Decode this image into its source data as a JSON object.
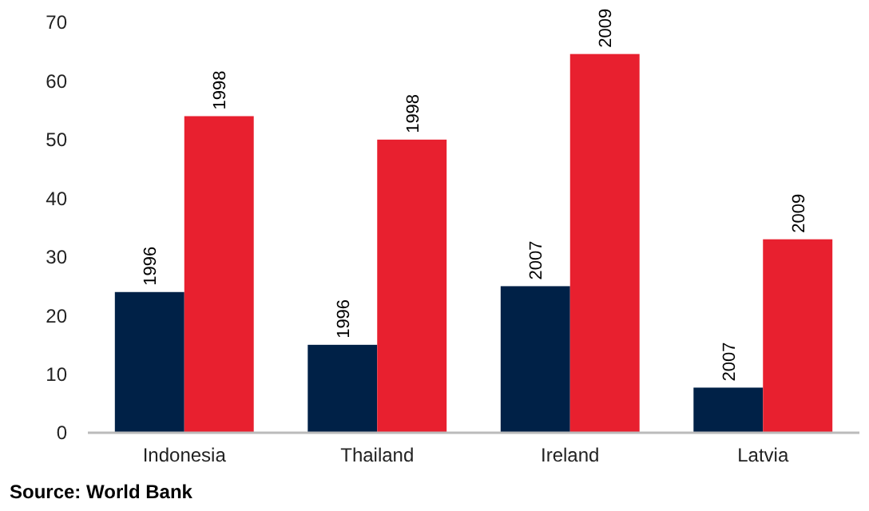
{
  "chart_data": {
    "type": "bar",
    "categories": [
      "Indonesia",
      "Thailand",
      "Ireland",
      "Latvia"
    ],
    "series": [
      {
        "color": "#002147",
        "values": [
          24,
          15,
          25,
          7.7
        ]
      },
      {
        "color": "#e8202f",
        "values": [
          54,
          50,
          64.6,
          33
        ]
      }
    ],
    "ylim": [
      0,
      70
    ],
    "yticks": [
      0,
      10,
      20,
      30,
      40,
      50,
      60,
      70
    ],
    "grid": false,
    "annotations": [
      {
        "text": "1996",
        "x": "Indonesia",
        "y": 24
      },
      {
        "text": "1998",
        "x": "Indonesia",
        "y": 54
      },
      {
        "text": "1996",
        "x": "Thailand",
        "y": 15
      },
      {
        "text": "1998",
        "x": "Thailand",
        "y": 50
      },
      {
        "text": "2007",
        "x": "Ireland",
        "y": 25
      },
      {
        "text": "2009",
        "x": "Ireland",
        "y": 64.6
      },
      {
        "text": "2007",
        "x": "Latvia",
        "y": 7.7
      },
      {
        "text": "2009",
        "x": "Latvia",
        "y": 33
      },
      "Source: World Bank"
    ]
  }
}
